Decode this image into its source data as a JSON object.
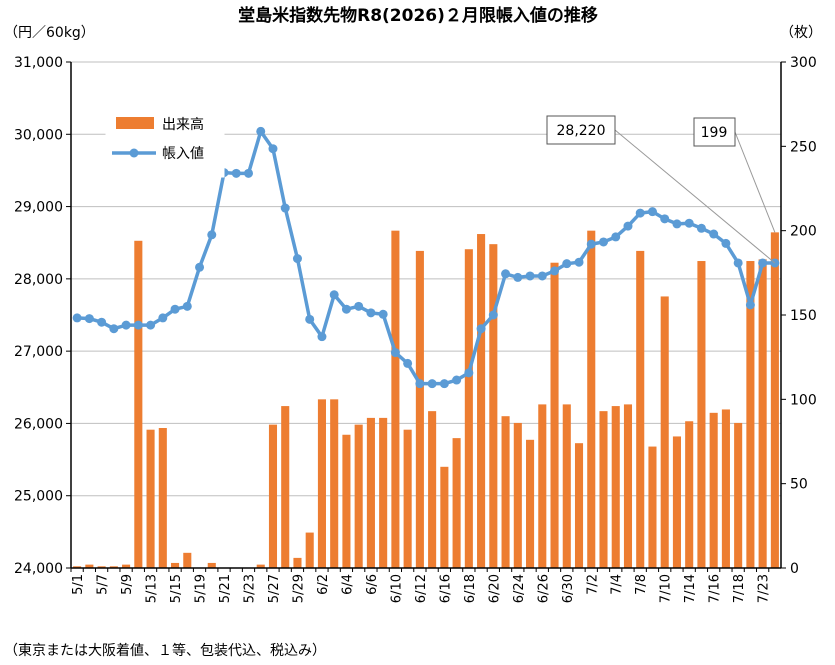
{
  "chart_data": {
    "type": "bar-line-combo",
    "title": "堂島米指数先物R8(2026)２月限帳入値の推移",
    "y_left_label": "（円／60kg）",
    "y_right_label": "（枚）",
    "footnote": "（東京または大阪着値、１等、包装代込、税込み）",
    "y_left_range": [
      24000,
      31000
    ],
    "y_left_ticks": [
      "24,000",
      "25,000",
      "26,000",
      "27,000",
      "28,000",
      "29,000",
      "30,000",
      "31,000"
    ],
    "y_right_range": [
      0,
      300
    ],
    "y_right_ticks": [
      "0",
      "50",
      "100",
      "150",
      "200",
      "250",
      "300"
    ],
    "x_tick_labels": [
      "5/1",
      "5/7",
      "5/9",
      "5/13",
      "5/15",
      "5/19",
      "5/21",
      "5/23",
      "5/27",
      "5/29",
      "6/2",
      "6/4",
      "6/6",
      "6/10",
      "6/12",
      "6/16",
      "6/18",
      "6/20",
      "6/24",
      "6/26",
      "6/30",
      "7/2",
      "7/4",
      "7/8",
      "7/10",
      "7/14",
      "7/16",
      "7/18",
      "7/23"
    ],
    "legend": {
      "bar": "出来高",
      "line": "帳入値"
    },
    "bar_series": {
      "name": "出来高",
      "color": "#ED7D31",
      "values": [
        1,
        2,
        1,
        1,
        2,
        194,
        82,
        83,
        3,
        9,
        0,
        3,
        0,
        0,
        0,
        2,
        85,
        96,
        6,
        21,
        100,
        100,
        79,
        85,
        89,
        89,
        200,
        82,
        188,
        93,
        60,
        77,
        189,
        198,
        192,
        90,
        86,
        76,
        97,
        181,
        97,
        74,
        200,
        93,
        96,
        97,
        188,
        72,
        161,
        78,
        87,
        182,
        92,
        94,
        86,
        182,
        183,
        199
      ]
    },
    "line_series": {
      "name": "帳入値",
      "color": "#5B9BD5",
      "values": [
        27460,
        27450,
        27400,
        27310,
        27360,
        27360,
        27360,
        27460,
        27580,
        27620,
        28160,
        28610,
        29470,
        29460,
        29460,
        30040,
        29800,
        28980,
        28280,
        27440,
        27200,
        27780,
        27580,
        27620,
        27530,
        27510,
        26980,
        26830,
        26550,
        26550,
        26550,
        26600,
        26700,
        27310,
        27500,
        28070,
        28020,
        28040,
        28040,
        28110,
        28210,
        28230,
        28480,
        28510,
        28580,
        28730,
        28910,
        28930,
        28830,
        28760,
        28770,
        28700,
        28620,
        28490,
        28220,
        27640,
        28220,
        28220
      ]
    },
    "callouts": [
      {
        "text": "28,220",
        "target": "line_last"
      },
      {
        "text": "199",
        "target": "bar_last"
      }
    ]
  }
}
